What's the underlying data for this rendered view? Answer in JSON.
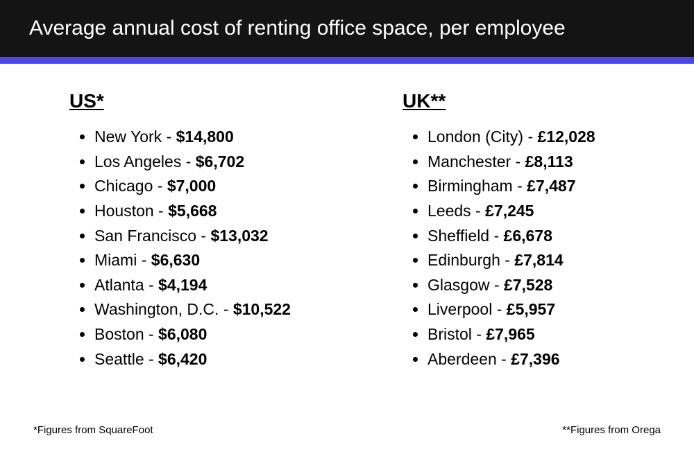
{
  "title": "Average annual cost of renting office space, per employee",
  "colors": {
    "header_bg": "#141414",
    "header_text": "#ffffff",
    "accent_bar": "#4c47e8",
    "body_bg": "#ffffff",
    "text": "#000000"
  },
  "typography": {
    "title_fontsize": 30,
    "col_title_fontsize": 28,
    "item_fontsize": 23,
    "footnote_fontsize": 15
  },
  "columns": [
    {
      "heading": "US*",
      "currency": "$",
      "items": [
        {
          "city": "New York",
          "cost": "14,800"
        },
        {
          "city": "Los Angeles",
          "cost": "6,702"
        },
        {
          "city": "Chicago",
          "cost": "7,000"
        },
        {
          "city": "Houston",
          "cost": "5,668"
        },
        {
          "city": "San Francisco",
          "cost": "13,032"
        },
        {
          "city": "Miami",
          "cost": "6,630"
        },
        {
          "city": "Atlanta",
          "cost": "4,194"
        },
        {
          "city": "Washington, D.C.",
          "cost": "10,522"
        },
        {
          "city": "Boston",
          "cost": "6,080"
        },
        {
          "city": "Seattle",
          "cost": "6,420"
        }
      ]
    },
    {
      "heading": "UK**",
      "currency": "£",
      "items": [
        {
          "city": "London (City)",
          "cost": "12,028"
        },
        {
          "city": "Manchester",
          "cost": "8,113"
        },
        {
          "city": "Birmingham",
          "cost": "7,487"
        },
        {
          "city": "Leeds",
          "cost": "7,245"
        },
        {
          "city": "Sheffield",
          "cost": "6,678"
        },
        {
          "city": "Edinburgh",
          "cost": "7,814"
        },
        {
          "city": "Glasgow",
          "cost": "7,528"
        },
        {
          "city": "Liverpool",
          "cost": "5,957"
        },
        {
          "city": "Bristol",
          "cost": "7,965"
        },
        {
          "city": "Aberdeen",
          "cost": "7,396"
        }
      ]
    }
  ],
  "footnotes": {
    "left": "*Figures from SquareFoot",
    "right": "**Figures from Orega"
  }
}
